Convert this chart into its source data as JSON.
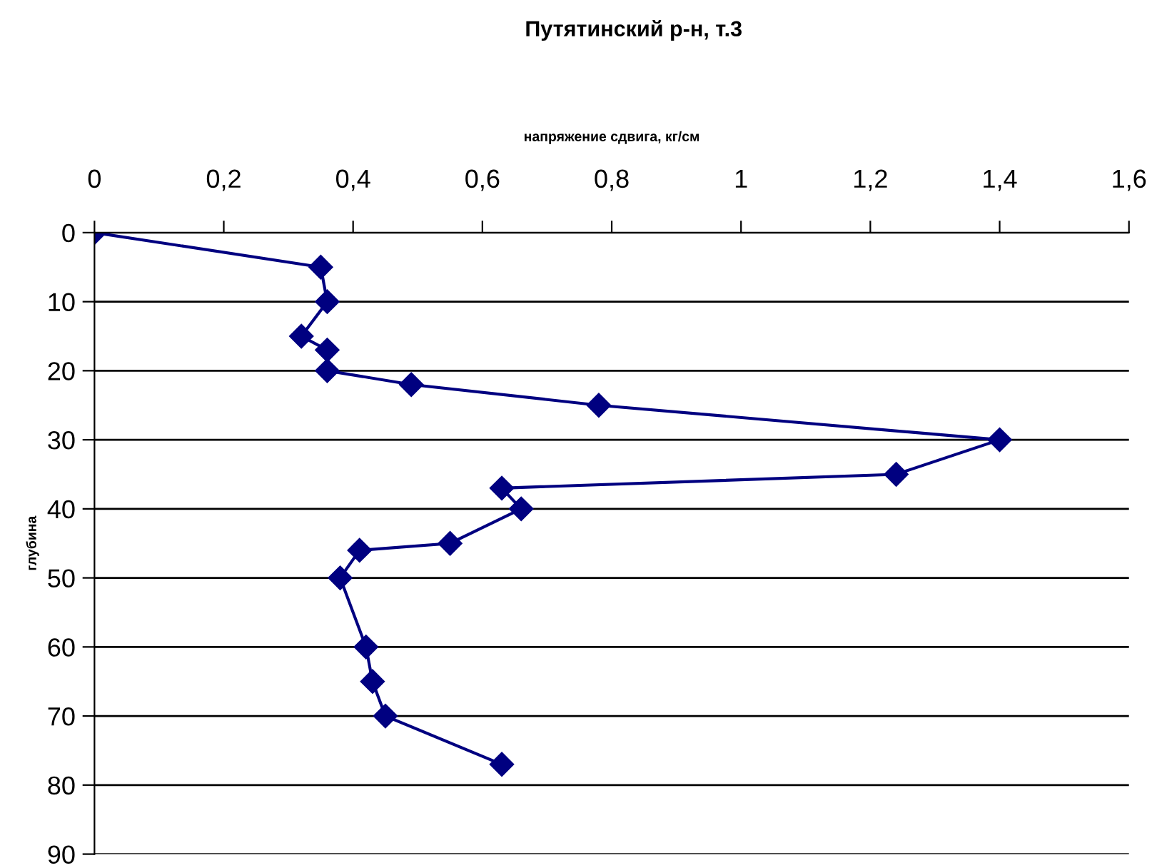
{
  "chart_data": {
    "type": "line",
    "title": "Путятинский р-н, т.3",
    "xlabel": "напряжение сдвига, кг/см",
    "ylabel": "глубина",
    "x": [
      0,
      0.35,
      0.36,
      0.32,
      0.36,
      0.36,
      0.49,
      0.78,
      1.4,
      1.24,
      0.63,
      0.66,
      0.55,
      0.41,
      0.38,
      0.42,
      0.43,
      0.45,
      0.63
    ],
    "series": [
      {
        "color": "#000080",
        "values": [
          0,
          5,
          10,
          15,
          17,
          20,
          22,
          25,
          30,
          35,
          37,
          40,
          45,
          46,
          50,
          60,
          65,
          70,
          77
        ]
      }
    ],
    "xlim": [
      0,
      1.6
    ],
    "xticks": [
      0,
      {
        "value": 0.2,
        "label": "0,2"
      },
      {
        "value": 0.4,
        "label": "0,4"
      },
      {
        "value": 0.6,
        "label": "0,6"
      },
      {
        "value": 0.8,
        "label": "0,8"
      },
      1,
      {
        "value": 1.2,
        "label": "1,2"
      },
      {
        "value": 1.4,
        "label": "1,4"
      },
      {
        "value": 1.6,
        "label": "1,6"
      }
    ],
    "ylim": [
      90,
      0
    ],
    "yticks": [
      0,
      10,
      20,
      30,
      40,
      50,
      60,
      70,
      80,
      90
    ],
    "grid": "y",
    "legend": false,
    "marker": "diamond",
    "line_style": "solid"
  }
}
